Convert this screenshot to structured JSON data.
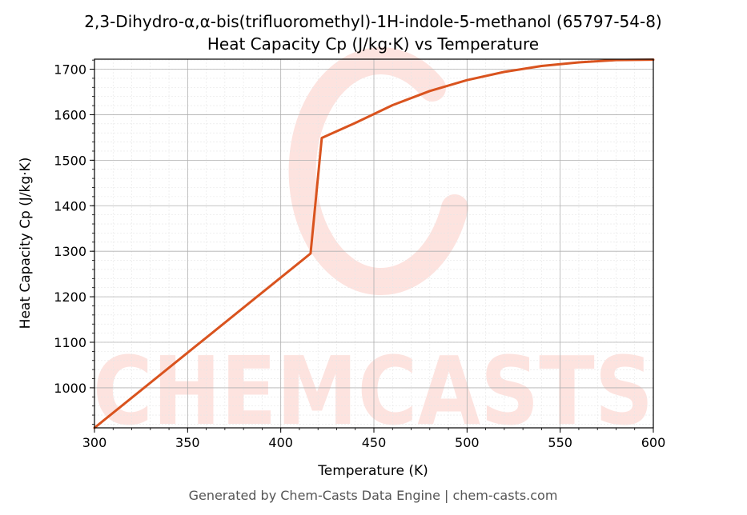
{
  "chart_data": {
    "type": "line",
    "title": "2,3-Dihydro-α,α-bis(trifluoromethyl)-1H-indole-5-methanol (65797-54-8)",
    "subtitle": "Heat Capacity Cp (J/kg·K) vs Temperature",
    "xlabel": "Temperature (K)",
    "ylabel": "Heat Capacity Cp (J/kg·K)",
    "xlim": [
      300,
      600
    ],
    "ylim": [
      912,
      1722
    ],
    "xticks": [
      300,
      350,
      400,
      450,
      500,
      550,
      600
    ],
    "yticks": [
      1000,
      1100,
      1200,
      1300,
      1400,
      1500,
      1600,
      1700
    ],
    "grid": true,
    "legend": "none",
    "series": [
      {
        "color": "#d9531e",
        "x": [
          300,
          416,
          422,
          440,
          460,
          480,
          500,
          520,
          540,
          560,
          580,
          600
        ],
        "y": [
          912,
          1295,
          1549,
          1582,
          1621,
          1652,
          1676,
          1694,
          1707,
          1715,
          1720,
          1721
        ]
      }
    ]
  },
  "watermark": {
    "text": "CHEMCASTS",
    "color": "#fde3df"
  },
  "footer": "Generated by Chem-Casts Data Engine | chem-casts.com"
}
